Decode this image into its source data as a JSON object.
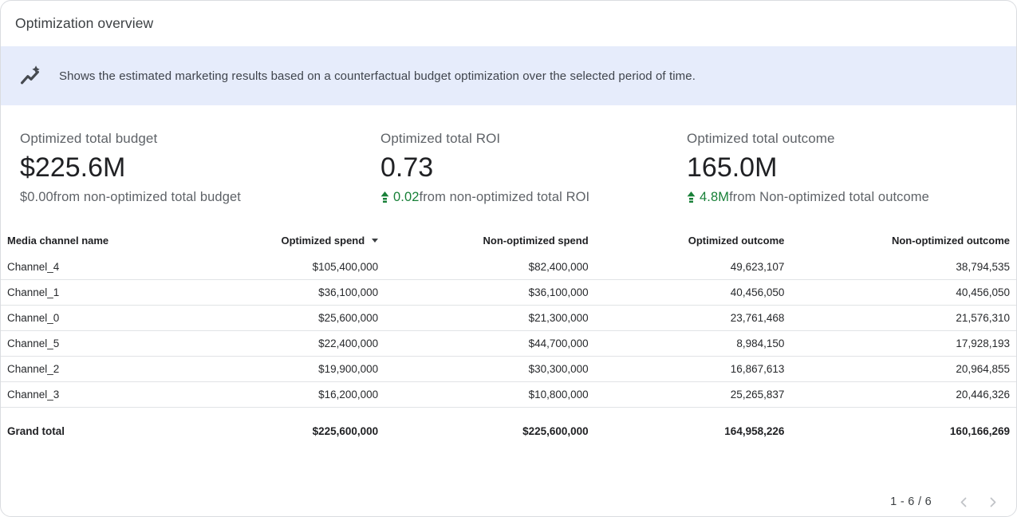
{
  "header": {
    "title": "Optimization overview"
  },
  "banner": {
    "icon": "insights-icon",
    "text": "Shows the estimated marketing results based on a counterfactual budget optimization over the selected period of time.",
    "background": "#e6ecfb"
  },
  "kpis": [
    {
      "label": "Optimized total budget",
      "value": "$225.6M",
      "delta": {
        "has_arrow": false,
        "highlight": "$0.00",
        "rest": " from non-optimized total budget"
      }
    },
    {
      "label": "Optimized total ROI",
      "value": "0.73",
      "delta": {
        "has_arrow": true,
        "highlight": "0.02",
        "rest": " from non-optimized total ROI"
      }
    },
    {
      "label": "Optimized total outcome",
      "value": "165.0M",
      "delta": {
        "has_arrow": true,
        "highlight": "4.8M",
        "rest": " from Non-optimized total outcome"
      }
    }
  ],
  "table": {
    "columns": [
      {
        "label": "Media channel name",
        "align": "left",
        "sort": null
      },
      {
        "label": "Optimized spend",
        "align": "right",
        "sort": "desc"
      },
      {
        "label": "Non-optimized spend",
        "align": "right",
        "sort": null
      },
      {
        "label": "Optimized outcome",
        "align": "right",
        "sort": null
      },
      {
        "label": "Non-optimized outcome",
        "align": "right",
        "sort": null
      }
    ],
    "rows": [
      [
        "Channel_4",
        "$105,400,000",
        "$82,400,000",
        "49,623,107",
        "38,794,535"
      ],
      [
        "Channel_1",
        "$36,100,000",
        "$36,100,000",
        "40,456,050",
        "40,456,050"
      ],
      [
        "Channel_0",
        "$25,600,000",
        "$21,300,000",
        "23,761,468",
        "21,576,310"
      ],
      [
        "Channel_5",
        "$22,400,000",
        "$44,700,000",
        "8,984,150",
        "17,928,193"
      ],
      [
        "Channel_2",
        "$19,900,000",
        "$30,300,000",
        "16,867,613",
        "20,964,855"
      ],
      [
        "Channel_3",
        "$16,200,000",
        "$10,800,000",
        "25,265,837",
        "20,446,326"
      ]
    ],
    "grand_total": [
      "Grand total",
      "$225,600,000",
      "$225,600,000",
      "164,958,226",
      "160,166,269"
    ]
  },
  "pagination": {
    "range": "1 - 6 / 6"
  },
  "colors": {
    "green": "#188038",
    "banner_bg": "#e6ecfb",
    "border": "#dadce0"
  }
}
